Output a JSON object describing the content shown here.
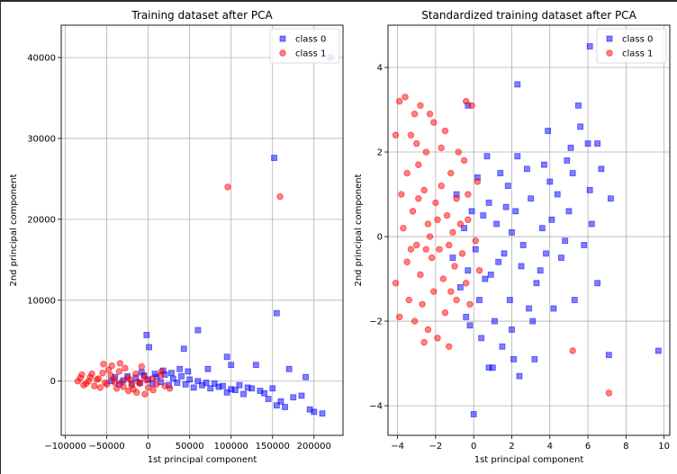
{
  "chart_data": [
    {
      "type": "scatter",
      "title": "Training dataset after PCA",
      "xlabel": "1st principal component",
      "ylabel": "2nd principal component",
      "xlim": [
        -105000,
        235000
      ],
      "ylim": [
        -6700,
        44000
      ],
      "xticks": [
        -100000,
        -50000,
        0,
        50000,
        100000,
        150000,
        200000
      ],
      "xtick_labels": [
        "−100000",
        "−50000",
        "0",
        "50000",
        "100000",
        "150000",
        "200000"
      ],
      "yticks": [
        0,
        10000,
        20000,
        30000,
        40000
      ],
      "ytick_labels": [
        "0",
        "10000",
        "20000",
        "30000",
        "40000"
      ],
      "grid": true,
      "legend_position": "top-right",
      "series": [
        {
          "name": "class 0",
          "marker": "square",
          "color": "#0000ff",
          "points": [
            [
              152000,
              27600
            ],
            [
              155000,
              8400
            ],
            [
              -2000,
              5700
            ],
            [
              60000,
              6300
            ],
            [
              43000,
              4000
            ],
            [
              1000,
              4200
            ],
            [
              95000,
              3000
            ],
            [
              130000,
              2000
            ],
            [
              170000,
              1500
            ],
            [
              190000,
              500
            ],
            [
              155000,
              -3000
            ],
            [
              160000,
              -2500
            ],
            [
              175000,
              -2000
            ],
            [
              195000,
              -3500
            ],
            [
              200000,
              -3800
            ],
            [
              210000,
              -4000
            ],
            [
              140000,
              -1500
            ],
            [
              120000,
              -800
            ],
            [
              110000,
              -500
            ],
            [
              100000,
              -1000
            ],
            [
              90000,
              -600
            ],
            [
              80000,
              -300
            ],
            [
              70000,
              -200
            ],
            [
              60000,
              0
            ],
            [
              50000,
              200
            ],
            [
              45000,
              -400
            ],
            [
              40000,
              600
            ],
            [
              35000,
              -200
            ],
            [
              30000,
              300
            ],
            [
              25000,
              -500
            ],
            [
              20000,
              800
            ],
            [
              15000,
              -100
            ],
            [
              10000,
              500
            ],
            [
              5000,
              -300
            ],
            [
              0,
              200
            ],
            [
              -5000,
              700
            ],
            [
              -10000,
              -200
            ],
            [
              -15000,
              400
            ],
            [
              -20000,
              -300
            ],
            [
              -25000,
              600
            ],
            [
              -30000,
              100
            ],
            [
              -35000,
              -400
            ],
            [
              -40000,
              500
            ],
            [
              -45000,
              0
            ],
            [
              135000,
              -1200
            ],
            [
              125000,
              -900
            ],
            [
              115000,
              -1600
            ],
            [
              105000,
              -1100
            ],
            [
              95000,
              -1400
            ],
            [
              85000,
              -700
            ],
            [
              75000,
              -900
            ],
            [
              65000,
              -500
            ],
            [
              55000,
              -800
            ],
            [
              48000,
              1200
            ],
            [
              38000,
              1500
            ],
            [
              28000,
              1000
            ],
            [
              18000,
              1300
            ],
            [
              8000,
              900
            ],
            [
              -8000,
              1100
            ],
            [
              145000,
              -2200
            ],
            [
              165000,
              -3200
            ],
            [
              150000,
              -900
            ],
            [
              185000,
              -1800
            ],
            [
              220000,
              40000
            ],
            [
              100000,
              2000
            ],
            [
              72000,
              1500
            ]
          ]
        },
        {
          "name": "class 1",
          "marker": "circle",
          "color": "#ff0000",
          "points": [
            [
              96000,
              24000
            ],
            [
              159000,
              22800
            ],
            [
              -85000,
              0
            ],
            [
              -80000,
              800
            ],
            [
              -75000,
              -300
            ],
            [
              -70000,
              500
            ],
            [
              -65000,
              -600
            ],
            [
              -60000,
              300
            ],
            [
              -55000,
              1000
            ],
            [
              -50000,
              -400
            ],
            [
              -45000,
              700
            ],
            [
              -40000,
              -200
            ],
            [
              -35000,
              1200
            ],
            [
              -30000,
              -700
            ],
            [
              -25000,
              400
            ],
            [
              -20000,
              -500
            ],
            [
              -15000,
              900
            ],
            [
              -10000,
              -300
            ],
            [
              -5000,
              600
            ],
            [
              0,
              -800
            ],
            [
              5000,
              300
            ],
            [
              10000,
              -400
            ],
            [
              15000,
              700
            ],
            [
              20000,
              -600
            ],
            [
              -78000,
              -500
            ],
            [
              -68000,
              900
            ],
            [
              -58000,
              -800
            ],
            [
              -48000,
              1400
            ],
            [
              -38000,
              -900
            ],
            [
              -28000,
              1600
            ],
            [
              -18000,
              -1000
            ],
            [
              -8000,
              1800
            ],
            [
              -62000,
              200
            ],
            [
              -52000,
              -200
            ],
            [
              -42000,
              300
            ],
            [
              -32000,
              -100
            ],
            [
              -22000,
              200
            ],
            [
              -12000,
              -100
            ],
            [
              -2000,
              100
            ],
            [
              -72000,
              0
            ],
            [
              -82000,
              400
            ],
            [
              -54000,
              2100
            ],
            [
              -44000,
              1900
            ],
            [
              -34000,
              2200
            ],
            [
              -24000,
              -1200
            ],
            [
              -14000,
              -1400
            ],
            [
              -4000,
              -1600
            ],
            [
              6000,
              -1100
            ],
            [
              16000,
              1200
            ],
            [
              26000,
              -900
            ]
          ]
        }
      ]
    },
    {
      "type": "scatter",
      "title": "Standardized training dataset after PCA",
      "xlabel": "1st principal component",
      "ylabel": "2nd principal component",
      "xlim": [
        -4.5,
        10.3
      ],
      "ylim": [
        -4.7,
        5.0
      ],
      "xticks": [
        -4,
        -2,
        0,
        2,
        4,
        6,
        8,
        10
      ],
      "xtick_labels": [
        "−4",
        "−2",
        "0",
        "2",
        "4",
        "6",
        "8",
        "10"
      ],
      "yticks": [
        -4,
        -2,
        0,
        2,
        4
      ],
      "ytick_labels": [
        "−4",
        "−2",
        "0",
        "2",
        "4"
      ],
      "grid": true,
      "legend_position": "top-right",
      "series": [
        {
          "name": "class 0",
          "marker": "square",
          "color": "#0000ff",
          "points": [
            [
              6.1,
              4.5
            ],
            [
              2.3,
              3.6
            ],
            [
              5.5,
              3.1
            ],
            [
              -0.3,
              3.1
            ],
            [
              5.6,
              2.6
            ],
            [
              3.9,
              2.5
            ],
            [
              6.0,
              2.2
            ],
            [
              6.5,
              2.2
            ],
            [
              5.1,
              2.1
            ],
            [
              6.7,
              1.6
            ],
            [
              4.9,
              1.8
            ],
            [
              3.7,
              1.7
            ],
            [
              5.2,
              1.5
            ],
            [
              6.1,
              1.1
            ],
            [
              7.2,
              0.9
            ],
            [
              5.0,
              0.6
            ],
            [
              4.1,
              0.4
            ],
            [
              6.2,
              0.3
            ],
            [
              5.8,
              -0.2
            ],
            [
              4.6,
              -0.5
            ],
            [
              3.5,
              -0.8
            ],
            [
              6.5,
              -1.1
            ],
            [
              5.3,
              -1.5
            ],
            [
              4.2,
              -1.7
            ],
            [
              3.1,
              -2.0
            ],
            [
              2.0,
              -2.2
            ],
            [
              1.5,
              -2.6
            ],
            [
              0.8,
              -3.1
            ],
            [
              2.4,
              -3.3
            ],
            [
              0.0,
              -4.2
            ],
            [
              9.7,
              -2.7
            ],
            [
              7.1,
              -2.8
            ],
            [
              3.2,
              -2.9
            ],
            [
              1.0,
              -3.1
            ],
            [
              2.1,
              -2.9
            ],
            [
              1.6,
              -0.4
            ],
            [
              1.2,
              0.3
            ],
            [
              0.9,
              -0.9
            ],
            [
              0.5,
              0.5
            ],
            [
              0.3,
              -1.5
            ],
            [
              0.1,
              -0.3
            ],
            [
              -0.1,
              0.6
            ],
            [
              -0.3,
              -0.8
            ],
            [
              -0.5,
              0.2
            ],
            [
              -0.7,
              -1.2
            ],
            [
              -0.9,
              1.0
            ],
            [
              -1.1,
              -0.5
            ],
            [
              1.8,
              1.2
            ],
            [
              2.2,
              0.6
            ],
            [
              2.6,
              -0.2
            ],
            [
              3.0,
              0.9
            ],
            [
              3.3,
              -1.1
            ],
            [
              2.8,
              1.6
            ],
            [
              1.4,
              1.5
            ],
            [
              0.7,
              1.9
            ],
            [
              0.2,
              1.4
            ],
            [
              1.9,
              -1.5
            ],
            [
              2.5,
              -0.7
            ],
            [
              3.6,
              0.2
            ],
            [
              4.4,
              1.0
            ],
            [
              4.8,
              -0.1
            ],
            [
              2.9,
              -1.7
            ],
            [
              1.1,
              -2.0
            ],
            [
              0.4,
              -2.4
            ],
            [
              -0.2,
              -2.1
            ],
            [
              0.6,
              -1.0
            ],
            [
              1.3,
              -0.6
            ],
            [
              2.0,
              0.1
            ],
            [
              3.8,
              -0.4
            ],
            [
              4.0,
              1.3
            ],
            [
              0.8,
              0.8
            ],
            [
              -0.4,
              -1.9
            ],
            [
              1.7,
              0.7
            ],
            [
              2.3,
              1.9
            ]
          ]
        },
        {
          "name": "class 1",
          "marker": "circle",
          "color": "#ff0000",
          "points": [
            [
              -3.6,
              3.3
            ],
            [
              -3.9,
              3.2
            ],
            [
              -2.8,
              3.1
            ],
            [
              -3.1,
              2.9
            ],
            [
              -2.3,
              2.9
            ],
            [
              -0.4,
              3.2
            ],
            [
              -0.1,
              3.1
            ],
            [
              -3.3,
              2.4
            ],
            [
              -4.1,
              2.4
            ],
            [
              -3.0,
              2.2
            ],
            [
              -2.1,
              2.7
            ],
            [
              -1.5,
              2.5
            ],
            [
              -2.5,
              2.0
            ],
            [
              -1.7,
              2.1
            ],
            [
              -0.8,
              2.0
            ],
            [
              -3.5,
              1.5
            ],
            [
              -2.9,
              1.7
            ],
            [
              -1.2,
              1.5
            ],
            [
              -0.5,
              1.8
            ],
            [
              0.2,
              1.3
            ],
            [
              -3.8,
              1.0
            ],
            [
              -3.2,
              0.6
            ],
            [
              -2.6,
              1.1
            ],
            [
              -2.0,
              0.8
            ],
            [
              -1.4,
              0.5
            ],
            [
              -0.9,
              0.9
            ],
            [
              -0.3,
              0.4
            ],
            [
              -3.7,
              0.2
            ],
            [
              -3.0,
              -0.2
            ],
            [
              -2.4,
              0.3
            ],
            [
              -1.8,
              -0.3
            ],
            [
              -1.1,
              0.1
            ],
            [
              -0.6,
              -0.4
            ],
            [
              0.1,
              -0.1
            ],
            [
              -3.5,
              -0.6
            ],
            [
              -2.8,
              -0.9
            ],
            [
              -2.2,
              -0.5
            ],
            [
              -1.6,
              -1.0
            ],
            [
              -1.0,
              -0.7
            ],
            [
              -0.4,
              -1.1
            ],
            [
              0.3,
              -0.8
            ],
            [
              -4.1,
              -1.1
            ],
            [
              -3.4,
              -1.5
            ],
            [
              -2.7,
              -1.6
            ],
            [
              -2.1,
              -1.3
            ],
            [
              -1.5,
              -1.8
            ],
            [
              -0.9,
              -1.5
            ],
            [
              -0.2,
              -1.6
            ],
            [
              -3.9,
              -1.9
            ],
            [
              -2.4,
              -2.2
            ],
            [
              -1.9,
              -2.4
            ],
            [
              -1.3,
              -2.6
            ],
            [
              -2.6,
              -2.5
            ],
            [
              -3.1,
              -2.0
            ],
            [
              5.2,
              -2.7
            ],
            [
              7.1,
              -3.7
            ],
            [
              -2.3,
              0.0
            ],
            [
              -1.9,
              0.4
            ],
            [
              -1.3,
              -0.2
            ],
            [
              -0.7,
              0.3
            ],
            [
              -2.5,
              -0.3
            ],
            [
              -1.7,
              1.2
            ],
            [
              -2.9,
              0.9
            ],
            [
              -3.3,
              -0.3
            ],
            [
              -1.2,
              -1.3
            ],
            [
              -0.3,
              1.0
            ]
          ]
        }
      ]
    }
  ]
}
